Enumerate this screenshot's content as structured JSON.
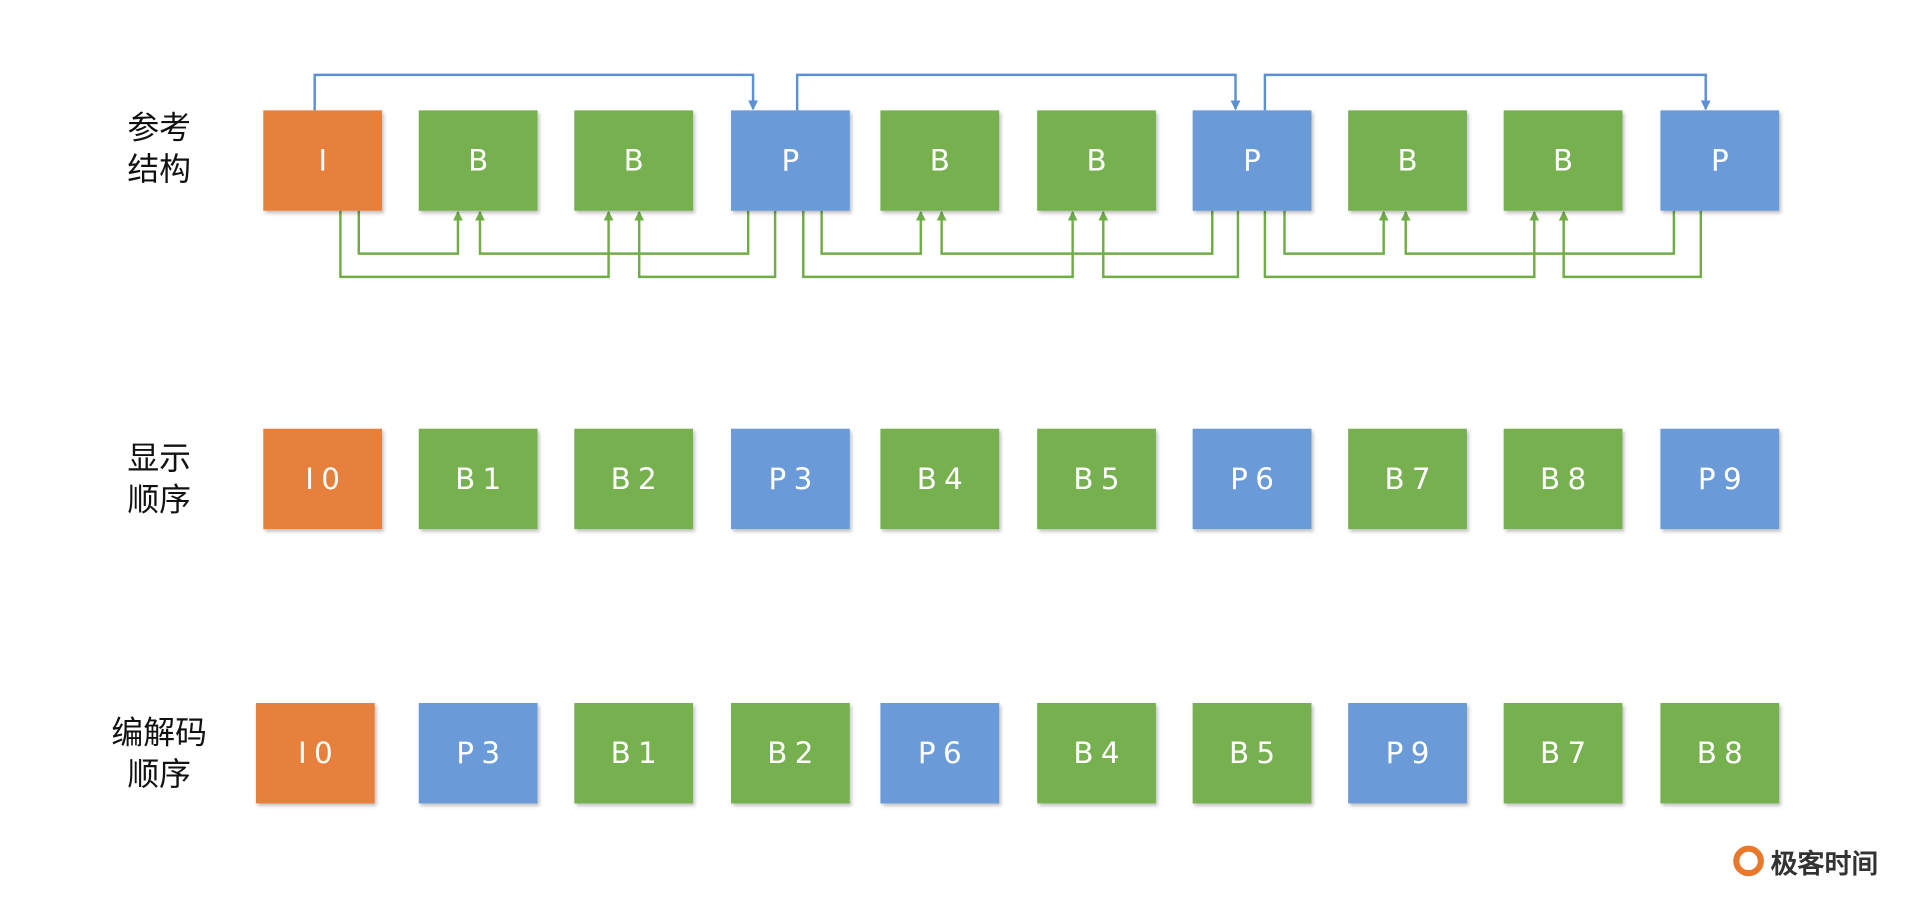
{
  "rows": [
    {
      "label": [
        "参考",
        "结构"
      ],
      "frames": [
        "I",
        "B",
        "B",
        "P",
        "B",
        "B",
        "P",
        "B",
        "B",
        "P"
      ]
    },
    {
      "label": [
        "显示",
        "顺序"
      ],
      "frames": [
        "I0",
        "B1",
        "B2",
        "P3",
        "B4",
        "B5",
        "P6",
        "B7",
        "B8",
        "P9"
      ]
    },
    {
      "label": [
        "编解码",
        "顺序"
      ],
      "frames": [
        "I0",
        "P3",
        "B1",
        "B2",
        "P6",
        "B4",
        "B5",
        "P9",
        "B7",
        "B8"
      ]
    }
  ],
  "logo": "极客时间"
}
